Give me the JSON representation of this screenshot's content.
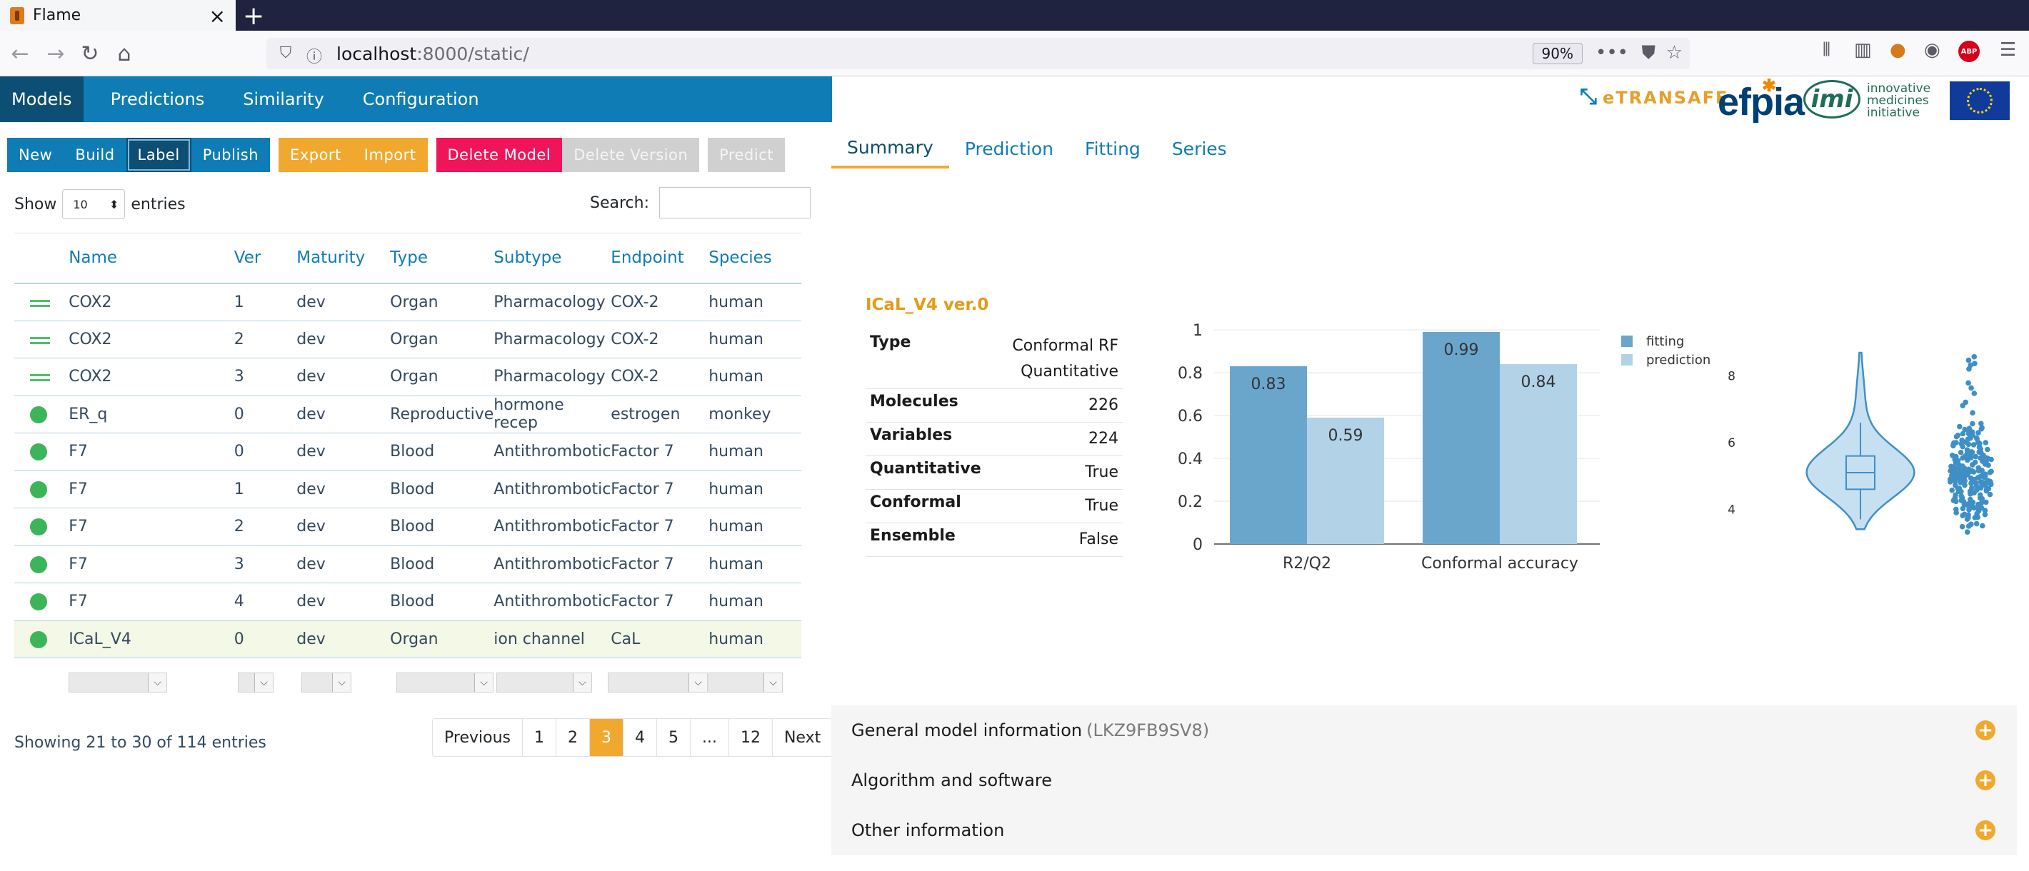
{
  "browser": {
    "tab_title": "Flame",
    "url_host": "localhost",
    "url_path": ":8000/static/",
    "zoom": "90%"
  },
  "nav": {
    "items": [
      {
        "label": "Models",
        "active": true
      },
      {
        "label": "Predictions",
        "active": false
      },
      {
        "label": "Similarity",
        "active": false
      },
      {
        "label": "Configuration",
        "active": false
      }
    ]
  },
  "logos": {
    "etransafe": "eTRANSAFE",
    "efpia": "efpia",
    "imi": "imi",
    "imi_line1": "innovative",
    "imi_line2": "medicines",
    "imi_line3": "initiative"
  },
  "toolbar": {
    "new": "New",
    "build": "Build",
    "label": "Label",
    "publish": "Publish",
    "export": "Export",
    "import": "Import",
    "delete_model": "Delete Model",
    "delete_version": "Delete Version",
    "predict": "Predict"
  },
  "table_controls": {
    "show": "Show",
    "entries_value": "10",
    "entries": "entries",
    "search": "Search:"
  },
  "table": {
    "headers": [
      "Name",
      "Ver",
      "Maturity",
      "Type",
      "Subtype",
      "Endpoint",
      "Species"
    ],
    "rows": [
      {
        "status": "bars",
        "name": "COX2",
        "ver": "1",
        "maturity": "dev",
        "type": "Organ",
        "subtype": "Pharmacology",
        "endpoint": "COX-2",
        "species": "human"
      },
      {
        "status": "bars",
        "name": "COX2",
        "ver": "2",
        "maturity": "dev",
        "type": "Organ",
        "subtype": "Pharmacology",
        "endpoint": "COX-2",
        "species": "human"
      },
      {
        "status": "bars",
        "name": "COX2",
        "ver": "3",
        "maturity": "dev",
        "type": "Organ",
        "subtype": "Pharmacology",
        "endpoint": "COX-2",
        "species": "human"
      },
      {
        "status": "dot",
        "name": "ER_q",
        "ver": "0",
        "maturity": "dev",
        "type": "Reproductive",
        "subtype": "hormone recep",
        "endpoint": "estrogen",
        "species": "monkey"
      },
      {
        "status": "dot",
        "name": "F7",
        "ver": "0",
        "maturity": "dev",
        "type": "Blood",
        "subtype": "Antithrombotic",
        "endpoint": "Factor 7",
        "species": "human"
      },
      {
        "status": "dot",
        "name": "F7",
        "ver": "1",
        "maturity": "dev",
        "type": "Blood",
        "subtype": "Antithrombotic",
        "endpoint": "Factor 7",
        "species": "human"
      },
      {
        "status": "dot",
        "name": "F7",
        "ver": "2",
        "maturity": "dev",
        "type": "Blood",
        "subtype": "Antithrombotic",
        "endpoint": "Factor 7",
        "species": "human"
      },
      {
        "status": "dot",
        "name": "F7",
        "ver": "3",
        "maturity": "dev",
        "type": "Blood",
        "subtype": "Antithrombotic",
        "endpoint": "Factor 7",
        "species": "human"
      },
      {
        "status": "dot",
        "name": "F7",
        "ver": "4",
        "maturity": "dev",
        "type": "Blood",
        "subtype": "Antithrombotic",
        "endpoint": "Factor 7",
        "species": "human"
      },
      {
        "status": "dot",
        "name": "ICaL_V4",
        "ver": "0",
        "maturity": "dev",
        "type": "Organ",
        "subtype": "ion channel",
        "endpoint": "CaL",
        "species": "human",
        "selected": true
      }
    ]
  },
  "pagination": {
    "showing": "Showing 21 to 30 of 114 entries",
    "pages": [
      "Previous",
      "1",
      "2",
      "3",
      "4",
      "5",
      "...",
      "12",
      "Next"
    ],
    "active": "3"
  },
  "right_tabs": [
    "Summary",
    "Prediction",
    "Fitting",
    "Series"
  ],
  "summary": {
    "title": "ICaL_V4 ver.0",
    "rows": [
      {
        "key": "Type",
        "value": "Conformal RF",
        "value2": "Quantitative"
      },
      {
        "key": "Molecules",
        "value": "226"
      },
      {
        "key": "Variables",
        "value": "224"
      },
      {
        "key": "Quantitative",
        "value": "True"
      },
      {
        "key": "Conformal",
        "value": "True"
      },
      {
        "key": "Ensemble",
        "value": "False"
      }
    ]
  },
  "chart_data": [
    {
      "type": "bar",
      "categories": [
        "R2/Q2",
        "Conformal accuracy"
      ],
      "series": [
        {
          "name": "fitting",
          "values": [
            0.83,
            0.99
          ],
          "color": "#6aa6cc"
        },
        {
          "name": "prediction",
          "values": [
            0.59,
            0.84
          ],
          "color": "#b2d2e7"
        }
      ],
      "data_labels": [
        [
          "0.83",
          "0.99"
        ],
        [
          "0.59",
          "0.84"
        ]
      ],
      "yticks": [
        "0",
        "0.2",
        "0.4",
        "0.6",
        "0.8",
        "1"
      ],
      "ylim": [
        0,
        1
      ],
      "grid": true,
      "legend": "top-right"
    },
    {
      "type": "violin",
      "yticks": [
        "4",
        "6",
        "8"
      ],
      "ylim": [
        3,
        9
      ],
      "color": "#3f8fc7",
      "box": {
        "q1": 4.6,
        "median": 5.1,
        "q3": 5.6,
        "whisker_low": 3.7,
        "whisker_high": 6.6
      },
      "range": [
        3.2,
        8.7
      ]
    }
  ],
  "accordion": [
    {
      "label": "General model information",
      "sub": "(LKZ9FB9SV8)"
    },
    {
      "label": "Algorithm and software",
      "sub": ""
    },
    {
      "label": "Other information",
      "sub": ""
    }
  ]
}
